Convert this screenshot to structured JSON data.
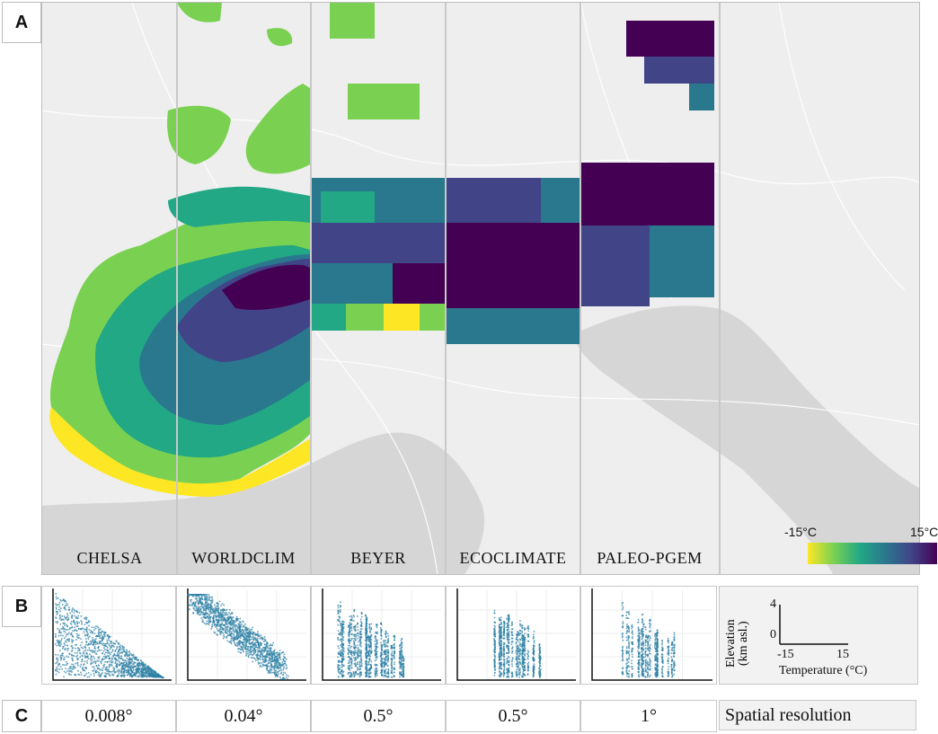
{
  "panels": {
    "a": "A",
    "b": "B",
    "c": "C"
  },
  "datasets": [
    {
      "name": "CHELSA",
      "resolution": "0.008°"
    },
    {
      "name": "WORLDCLIM",
      "resolution": "0.04°"
    },
    {
      "name": "BEYER",
      "resolution": "0.5°"
    },
    {
      "name": "ECOCLIMATE",
      "resolution": "0.5°"
    },
    {
      "name": "PALEO-PGEM",
      "resolution": "1°"
    }
  ],
  "legend": {
    "min_label": "-15°C",
    "max_label": "15°C",
    "colors": [
      "#fde725",
      "#7ad151",
      "#22a884",
      "#2a788e",
      "#414487",
      "#440154"
    ]
  },
  "scatter_axes": {
    "ylabel_line1": "Elevation",
    "ylabel_line2": "(km asl.)",
    "xlabel": "Temperature (°C)",
    "y_tick_max": "4",
    "y_tick_min": "0",
    "x_tick_min": "-15",
    "x_tick_max": "15"
  },
  "resolution_label": "Spatial resolution",
  "colors": {
    "map_land": "#eeeeee",
    "map_sea": "#d6d6d6",
    "scatter_points": "#2f82a6",
    "panel_border": "#bdbdbd"
  }
}
